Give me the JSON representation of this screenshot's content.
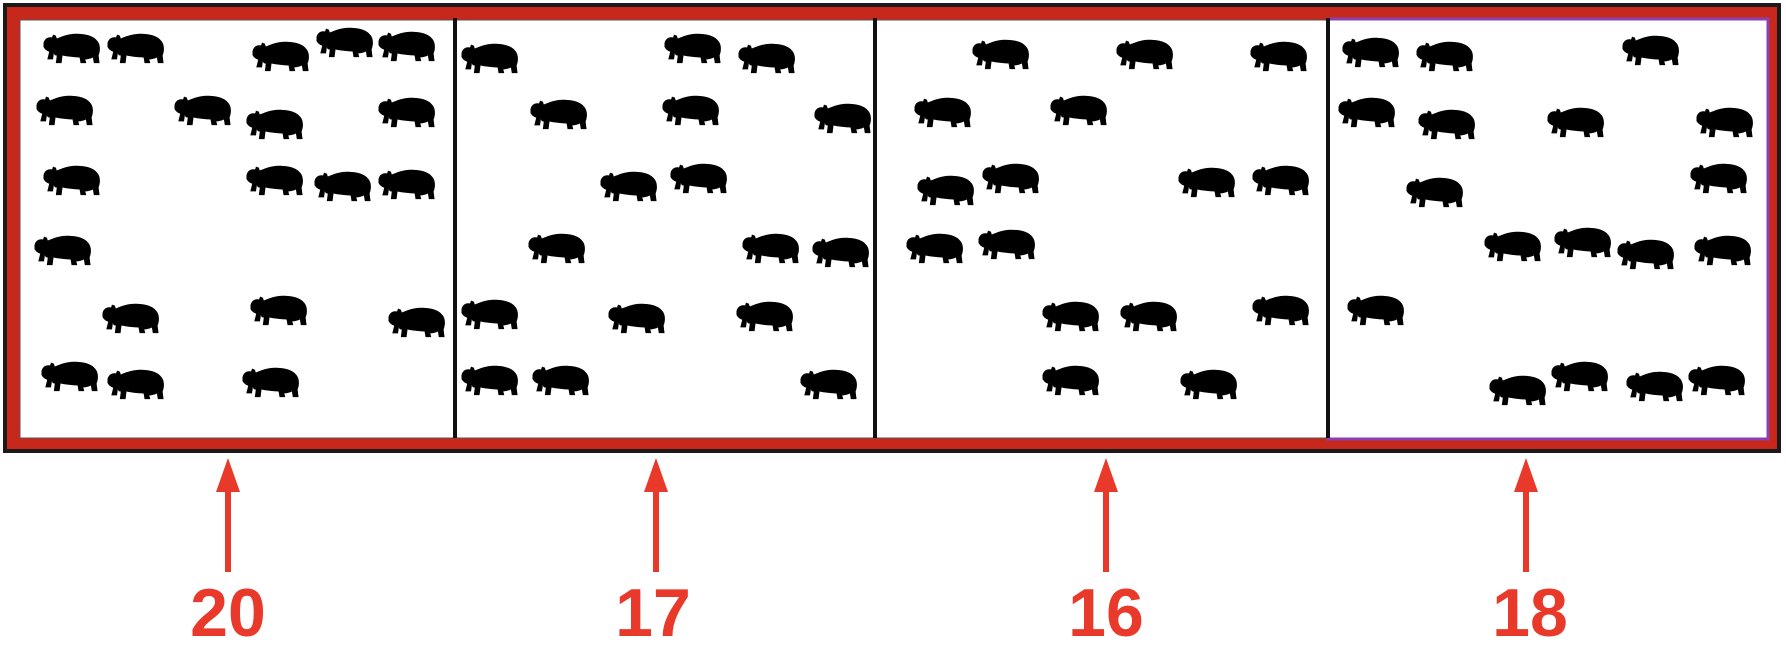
{
  "figure": {
    "colors": {
      "frame_outer": "#1a1a1a",
      "frame_red": "#c8281c",
      "highlight": "#8a3fb3",
      "divider": "#111111",
      "bear": "#000000",
      "arrow": "#e8392b"
    },
    "icon": "bear-icon",
    "panels": [
      {
        "label": "20",
        "bear_count": 20,
        "highlighted": false
      },
      {
        "label": "17",
        "bear_count": 17,
        "highlighted": false
      },
      {
        "label": "16",
        "bear_count": 16,
        "highlighted": false
      },
      {
        "label": "18",
        "bear_count": 18,
        "highlighted": true
      }
    ]
  }
}
